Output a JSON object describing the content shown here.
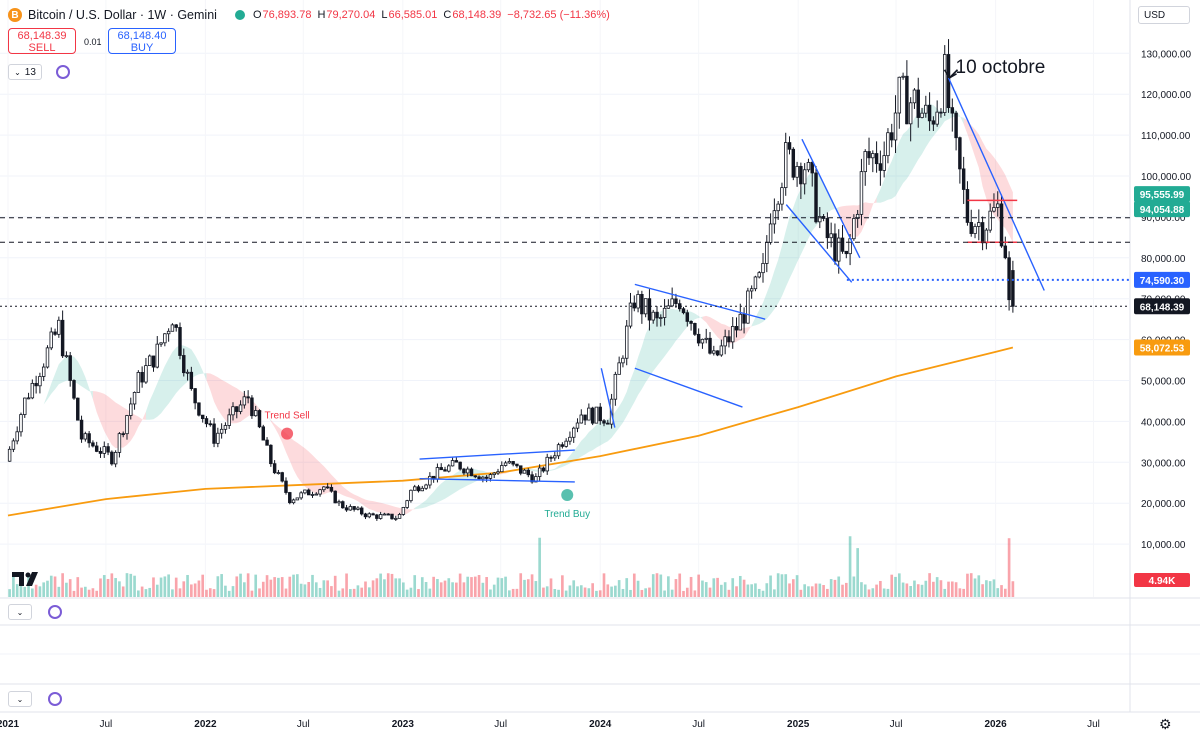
{
  "header": {
    "coin_icon": "B",
    "title": "Bitcoin / U.S. Dollar · 1W · Gemini",
    "open_label": "O",
    "open": "76,893.78",
    "high_label": "H",
    "high": "79,270.04",
    "low_label": "L",
    "low": "66,585.01",
    "close_label": "C",
    "close": "68,148.39",
    "change": "−8,732.65 (−11.36%)"
  },
  "trade": {
    "sell_price": "68,148.39",
    "sell_label": "SELL",
    "spread": "0.01",
    "buy_price": "68,148.40",
    "buy_label": "BUY"
  },
  "indicator_count": "13",
  "currency": "USD",
  "colors": {
    "up": "#22ab94",
    "down": "#f23645",
    "candle": "#131722",
    "ma": "#f89b0f",
    "trend_up_fill": "#22ab94",
    "trend_down_fill": "#f23645",
    "drawing": "#2962ff",
    "hline": "#131722"
  },
  "chart_data": {
    "type": "candlestick",
    "timeframe": "1W",
    "x_ticks": [
      "2021",
      "Jul",
      "2022",
      "Jul",
      "2023",
      "Jul",
      "2024",
      "Jul",
      "2025",
      "Jul",
      "2026",
      "Jul"
    ],
    "y_ticks": [
      "130,000.00",
      "120,000.00",
      "110,000.00",
      "100,000.00",
      "90,000.00",
      "80,000.00",
      "70,000.00",
      "60,000.00",
      "50,000.00",
      "40,000.00",
      "30,000.00",
      "20,000.00",
      "10,000.00"
    ],
    "y_tick_values": [
      130000,
      120000,
      110000,
      100000,
      90000,
      80000,
      70000,
      60000,
      50000,
      40000,
      30000,
      20000,
      10000
    ],
    "ylim": [
      0,
      134000
    ],
    "x_range": [
      "2021-01-01",
      "2026-09-01"
    ],
    "price_path": [
      [
        "2021-01-01",
        29000
      ],
      [
        "2021-02-08",
        45000
      ],
      [
        "2021-04-12",
        63000
      ],
      [
        "2021-05-24",
        36000
      ],
      [
        "2021-07-20",
        31000
      ],
      [
        "2021-09-06",
        50000
      ],
      [
        "2021-10-11",
        57000
      ],
      [
        "2021-11-08",
        66000
      ],
      [
        "2021-12-13",
        47000
      ],
      [
        "2022-01-24",
        36000
      ],
      [
        "2022-03-28",
        46000
      ],
      [
        "2022-05-09",
        30000
      ],
      [
        "2022-06-13",
        21000
      ],
      [
        "2022-08-15",
        24000
      ],
      [
        "2022-09-15",
        19500
      ],
      [
        "2022-11-07",
        17000
      ],
      [
        "2022-12-31",
        16500
      ],
      [
        "2023-01-23",
        23000
      ],
      [
        "2023-03-20",
        28000
      ],
      [
        "2023-04-17",
        29500
      ],
      [
        "2023-06-15",
        26000
      ],
      [
        "2023-07-15",
        30000
      ],
      [
        "2023-09-11",
        26000
      ],
      [
        "2023-10-23",
        34000
      ],
      [
        "2023-12-04",
        42000
      ],
      [
        "2024-01-22",
        41000
      ],
      [
        "2024-03-11",
        70000
      ],
      [
        "2024-04-22",
        64000
      ],
      [
        "2024-06-03",
        70000
      ],
      [
        "2024-08-05",
        55000
      ],
      [
        "2024-09-16",
        63000
      ],
      [
        "2024-11-04",
        76000
      ],
      [
        "2024-11-18",
        92000
      ],
      [
        "2024-12-16",
        104000
      ],
      [
        "2025-01-20",
        103000
      ],
      [
        "2025-02-24",
        86000
      ],
      [
        "2025-04-07",
        79000
      ],
      [
        "2025-05-12",
        104000
      ],
      [
        "2025-06-16",
        106000
      ],
      [
        "2025-07-14",
        119000
      ],
      [
        "2025-08-11",
        118000
      ],
      [
        "2025-09-08",
        113000
      ],
      [
        "2025-10-06",
        124000
      ],
      [
        "2025-10-20",
        110000
      ],
      [
        "2025-11-17",
        90000
      ],
      [
        "2025-12-15",
        88000
      ],
      [
        "2026-01-12",
        92000
      ],
      [
        "2026-01-26",
        82000
      ],
      [
        "2026-02-02",
        68148
      ]
    ],
    "moving_average": [
      [
        "2021-01-01",
        17000
      ],
      [
        "2021-07-01",
        21000
      ],
      [
        "2022-01-01",
        23500
      ],
      [
        "2022-07-01",
        24500
      ],
      [
        "2023-01-01",
        25500
      ],
      [
        "2023-07-01",
        27500
      ],
      [
        "2024-01-01",
        31500
      ],
      [
        "2024-07-01",
        36500
      ],
      [
        "2025-01-01",
        43500
      ],
      [
        "2025-07-01",
        51000
      ],
      [
        "2026-01-01",
        57000
      ],
      [
        "2026-02-02",
        58072.53
      ]
    ],
    "price_labels": [
      {
        "text": "95,555.99",
        "value": 95555.99,
        "color": "#22ab94"
      },
      {
        "text": "94,054.88",
        "value": 94054.88,
        "color": "#22ab94"
      },
      {
        "text": "74,590.30",
        "value": 74590.3,
        "color": "#2962ff"
      },
      {
        "text": "68,148.39",
        "value": 68148.39,
        "color": "#131722"
      },
      {
        "text": "58,072.53",
        "value": 58072.53,
        "color": "#f89b0f"
      }
    ],
    "volume_label": "4.94K",
    "annotations": [
      {
        "text": "10 octobre",
        "date": "2025-10-06",
        "value": 125000
      },
      {
        "text": "Trend Sell",
        "date": "2022-06-01",
        "value": 37000
      },
      {
        "text": "Trend Buy",
        "date": "2023-11-01",
        "value": 22000
      }
    ],
    "levels": [
      {
        "value": 89800,
        "style": "dashed"
      },
      {
        "value": 83800,
        "style": "dashed"
      },
      {
        "value": 74590.3,
        "style": "dotted"
      },
      {
        "value": 68148.39,
        "style": "dotted"
      }
    ]
  }
}
